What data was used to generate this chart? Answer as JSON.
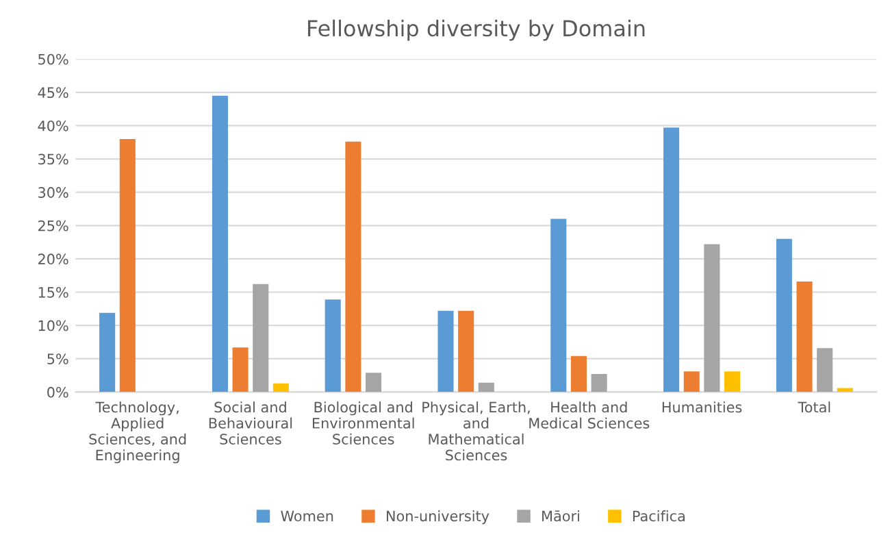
{
  "chart_data": {
    "type": "bar",
    "title": "Fellowship diversity by Domain",
    "categories": [
      "Technology,\nApplied\nSciences, and\nEngineering",
      "Social and\nBehavioural\nSciences",
      "Biological and\nEnvironmental\nSciences",
      "Physical, Earth,\nand\nMathematical\nSciences",
      "Health and\nMedical Sciences",
      "Humanities",
      "Total"
    ],
    "series": [
      {
        "name": "Women",
        "color": "#5b9bd5",
        "values": [
          11.9,
          44.5,
          13.9,
          12.2,
          26,
          39.7,
          23
        ]
      },
      {
        "name": "Non-university",
        "color": "#ed7d31",
        "values": [
          38,
          6.7,
          37.6,
          12.2,
          5.4,
          3.1,
          16.6
        ]
      },
      {
        "name": "Māori",
        "color": "#a5a5a5",
        "values": [
          null,
          16.2,
          2.9,
          1.4,
          2.7,
          22.2,
          6.6
        ]
      },
      {
        "name": "Pacifica",
        "color": "#ffc000",
        "values": [
          null,
          1.3,
          null,
          null,
          null,
          3.1,
          0.6
        ]
      }
    ],
    "ylim": [
      0,
      50
    ],
    "yticks": [
      {
        "value": 0,
        "label": "0%"
      },
      {
        "value": 5,
        "label": "5%"
      },
      {
        "value": 10,
        "label": "10%"
      },
      {
        "value": 15,
        "label": "15%"
      },
      {
        "value": 20,
        "label": "20%"
      },
      {
        "value": 25,
        "label": "25%"
      },
      {
        "value": 30,
        "label": "30%"
      },
      {
        "value": 35,
        "label": "35%"
      },
      {
        "value": 40,
        "label": "40%"
      },
      {
        "value": 45,
        "label": "45%"
      },
      {
        "value": 50,
        "label": "50%"
      }
    ],
    "grid": "y",
    "legend": "bottom"
  }
}
